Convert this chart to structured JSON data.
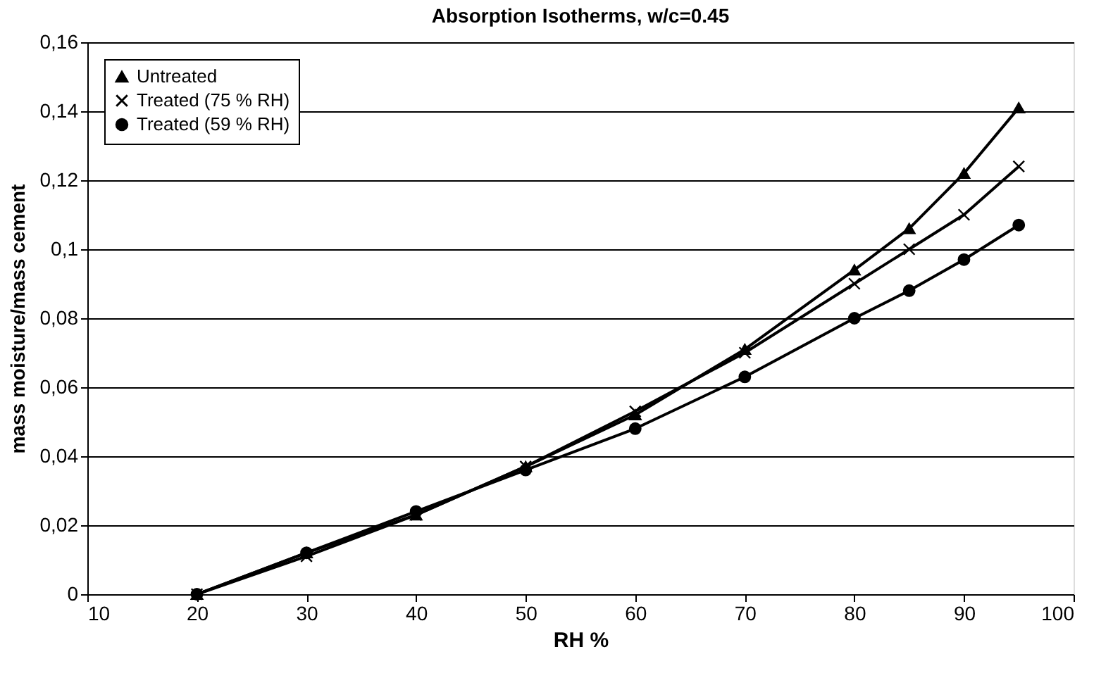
{
  "chart_data": {
    "type": "line",
    "title": "Absorption Isotherms, w/c=0.45",
    "xlabel": "RH %",
    "ylabel": "mass moisture/mass cement",
    "x": [
      20,
      30,
      40,
      50,
      60,
      70,
      80,
      85,
      90,
      95
    ],
    "series": [
      {
        "name": "Untreated",
        "color": "#000000",
        "marker": "triangle",
        "values": [
          0,
          0.012,
          0.023,
          0.037,
          0.052,
          0.071,
          0.094,
          0.106,
          0.122,
          0.141
        ]
      },
      {
        "name": "Treated (75 % RH)",
        "color": "#000000",
        "marker": "cross",
        "values": [
          0,
          0.011,
          0.023,
          0.037,
          0.053,
          0.07,
          0.09,
          0.1,
          0.11,
          0.124
        ]
      },
      {
        "name": "Treated (59 % RH)",
        "color": "#000000",
        "marker": "circle",
        "values": [
          0,
          0.012,
          0.024,
          0.036,
          0.048,
          0.063,
          0.08,
          0.088,
          0.097,
          0.107
        ]
      }
    ],
    "xlim": [
      10,
      100
    ],
    "xticks": [
      10,
      20,
      30,
      40,
      50,
      60,
      70,
      80,
      90,
      100
    ],
    "ylim": [
      0,
      0.16
    ],
    "yticks": [
      0,
      {
        "value": 0.02,
        "label": "0,02"
      },
      {
        "value": 0.04,
        "label": "0,04"
      },
      {
        "value": 0.06,
        "label": "0,06"
      },
      {
        "value": 0.08,
        "label": "0,08"
      },
      {
        "value": 0.1,
        "label": "0,1"
      },
      {
        "value": 0.12,
        "label": "0,12"
      },
      {
        "value": 0.14,
        "label": "0,14"
      },
      {
        "value": 0.16,
        "label": "0,16"
      }
    ],
    "grid": "y",
    "legend": "top left",
    "line_style": "solid"
  }
}
